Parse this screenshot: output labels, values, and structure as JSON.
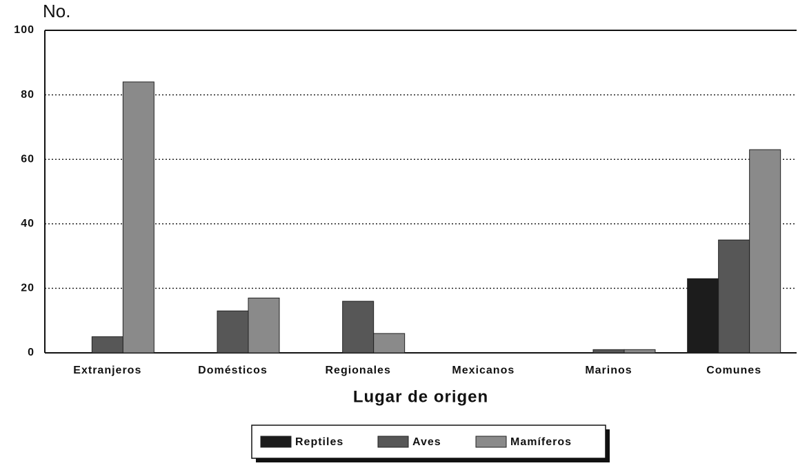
{
  "chart_data": {
    "type": "bar",
    "y_label": "No.",
    "x_label": "Lugar de origen",
    "categories": [
      "Extranjeros",
      "Domésticos",
      "Regionales",
      "Mexicanos",
      "Marinos",
      "Comunes"
    ],
    "series": [
      {
        "name": "Reptiles",
        "color": "#1c1c1c",
        "values": [
          0,
          0,
          0,
          0,
          0,
          23
        ]
      },
      {
        "name": "Aves",
        "color": "#575757",
        "values": [
          5,
          13,
          16,
          0,
          1,
          35
        ]
      },
      {
        "name": "Mamíferos",
        "color": "#8a8a8a",
        "values": [
          84,
          17,
          6,
          0,
          1,
          63
        ]
      }
    ],
    "ylim": [
      0,
      100
    ],
    "yticks": [
      0,
      20,
      40,
      60,
      80,
      100
    ],
    "grid": true,
    "legend": "bottom"
  }
}
